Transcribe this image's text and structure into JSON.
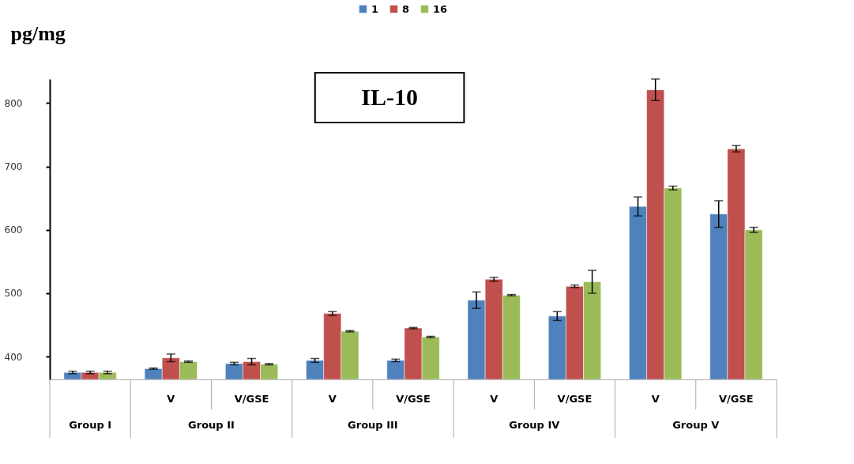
{
  "chart_data": {
    "type": "bar",
    "title": "IL-10",
    "ylabel": "pg/mg",
    "categories": [
      null,
      "V",
      "V/GSE",
      "V",
      "V/GSE",
      "V",
      "V/GSE",
      "V",
      "V/GSE"
    ],
    "annotations": [
      "Group I",
      "Group II",
      "Group III",
      "Group IV",
      "Group V"
    ],
    "series": [
      {
        "name": "1",
        "color": "#4f81bd",
        "values": [
          375,
          381,
          389,
          394,
          394,
          489,
          464,
          637,
          625
        ],
        "errors": [
          2,
          1,
          2,
          3,
          2,
          13,
          7,
          15,
          21
        ]
      },
      {
        "name": "8",
        "color": "#c0504d",
        "values": [
          375,
          398,
          392,
          468,
          445,
          522,
          511,
          821,
          728
        ],
        "errors": [
          2,
          6,
          5,
          3,
          1,
          3,
          2,
          17,
          5
        ]
      },
      {
        "name": "16",
        "color": "#9bbb59",
        "values": [
          375,
          392,
          388,
          440,
          431,
          497,
          518,
          666,
          600
        ],
        "errors": [
          2,
          1,
          1,
          1,
          1,
          1,
          18,
          3,
          4
        ]
      }
    ],
    "ylim": [
      364,
      838
    ],
    "yticks": [
      400,
      500,
      600,
      700,
      800
    ],
    "legend": "top"
  }
}
